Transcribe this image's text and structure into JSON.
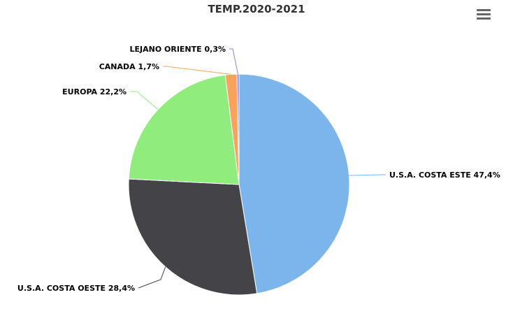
{
  "chart_data": {
    "type": "pie",
    "title": "TEMP.2020-2021",
    "slices": [
      {
        "name": "U.S.A. COSTA ESTE",
        "value": 47.4,
        "label": "U.S.A. COSTA ESTE 47,4%",
        "color": "#7cb5ec"
      },
      {
        "name": "U.S.A. COSTA OESTE",
        "value": 28.4,
        "label": "U.S.A. COSTA OESTE 28,4%",
        "color": "#434348"
      },
      {
        "name": "EUROPA",
        "value": 22.2,
        "label": "EUROPA 22,2%",
        "color": "#90ed7d"
      },
      {
        "name": "CANADA",
        "value": 1.7,
        "label": "CANADA 1,7%",
        "color": "#f7a35c"
      },
      {
        "name": "LEJANO ORIENTE",
        "value": 0.3,
        "label": "LEJANO ORIENTE 0,3%",
        "color": "#8085e9"
      }
    ]
  },
  "menu": {
    "icon": "hamburger-menu-icon"
  }
}
